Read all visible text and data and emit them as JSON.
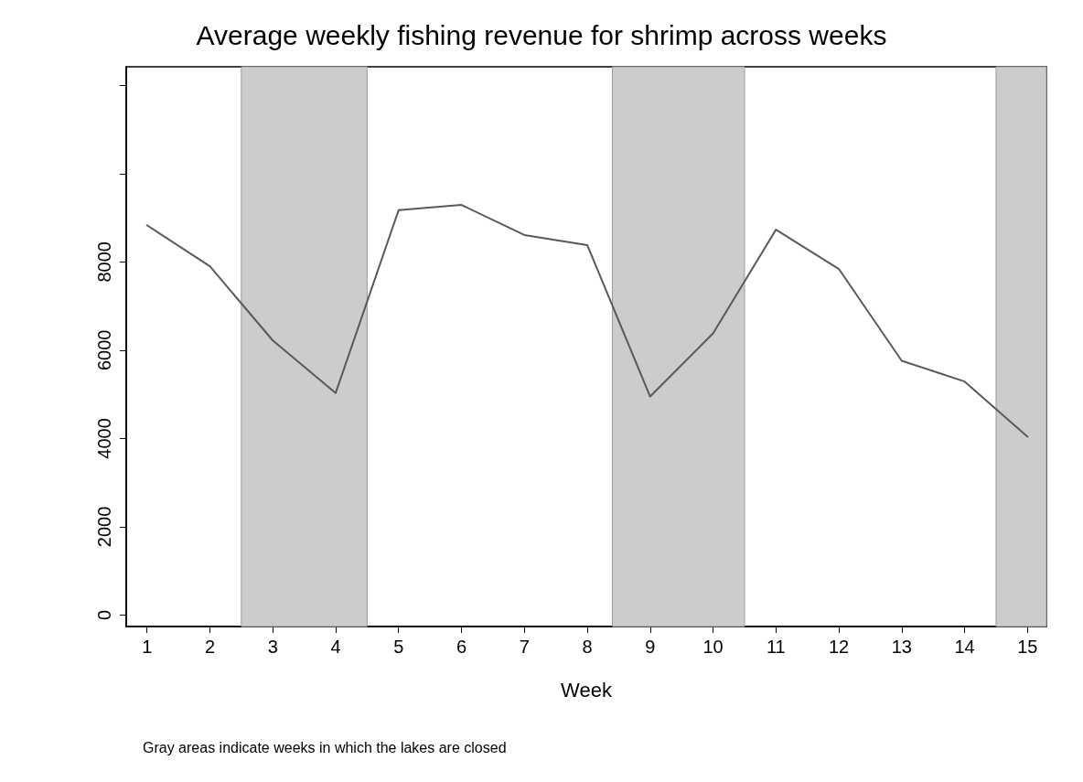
{
  "chart_data": {
    "type": "line",
    "title": "Average weekly fishing revenue for shrimp across weeks",
    "xlabel": "Week",
    "x": [
      1,
      2,
      3,
      4,
      5,
      6,
      7,
      8,
      9,
      10,
      11,
      12,
      13,
      14,
      15
    ],
    "series": [
      {
        "color": "#595959",
        "values": [
          8830,
          7900,
          6220,
          5030,
          9170,
          9290,
          8610,
          8380,
          4950,
          6380,
          8730,
          7840,
          5760,
          5290,
          4040
        ]
      }
    ],
    "xlim": [
      0.67,
      15.3
    ],
    "xticks": [
      1,
      2,
      3,
      4,
      5,
      6,
      7,
      8,
      9,
      10,
      11,
      12,
      13,
      14,
      15
    ],
    "ylim": [
      -260,
      12420
    ],
    "yticks": [
      0,
      2000,
      4000,
      6000,
      8000,
      {
        "value": 10000,
        "label": null
      },
      {
        "value": 12000,
        "label": null
      }
    ],
    "bands": [
      {
        "axis": "x",
        "from": 2.5,
        "to": 4.5,
        "color": "#cccccc"
      },
      {
        "axis": "x",
        "from": 8.4,
        "to": 10.5,
        "color": "#cccccc"
      },
      {
        "axis": "x",
        "from": 14.5,
        "to": 15.3,
        "color": "#cccccc"
      }
    ],
    "annotations": [
      "Gray areas indicate weeks in which the lakes are closed"
    ],
    "grid": false,
    "marker": "none",
    "line_style": "solid"
  }
}
